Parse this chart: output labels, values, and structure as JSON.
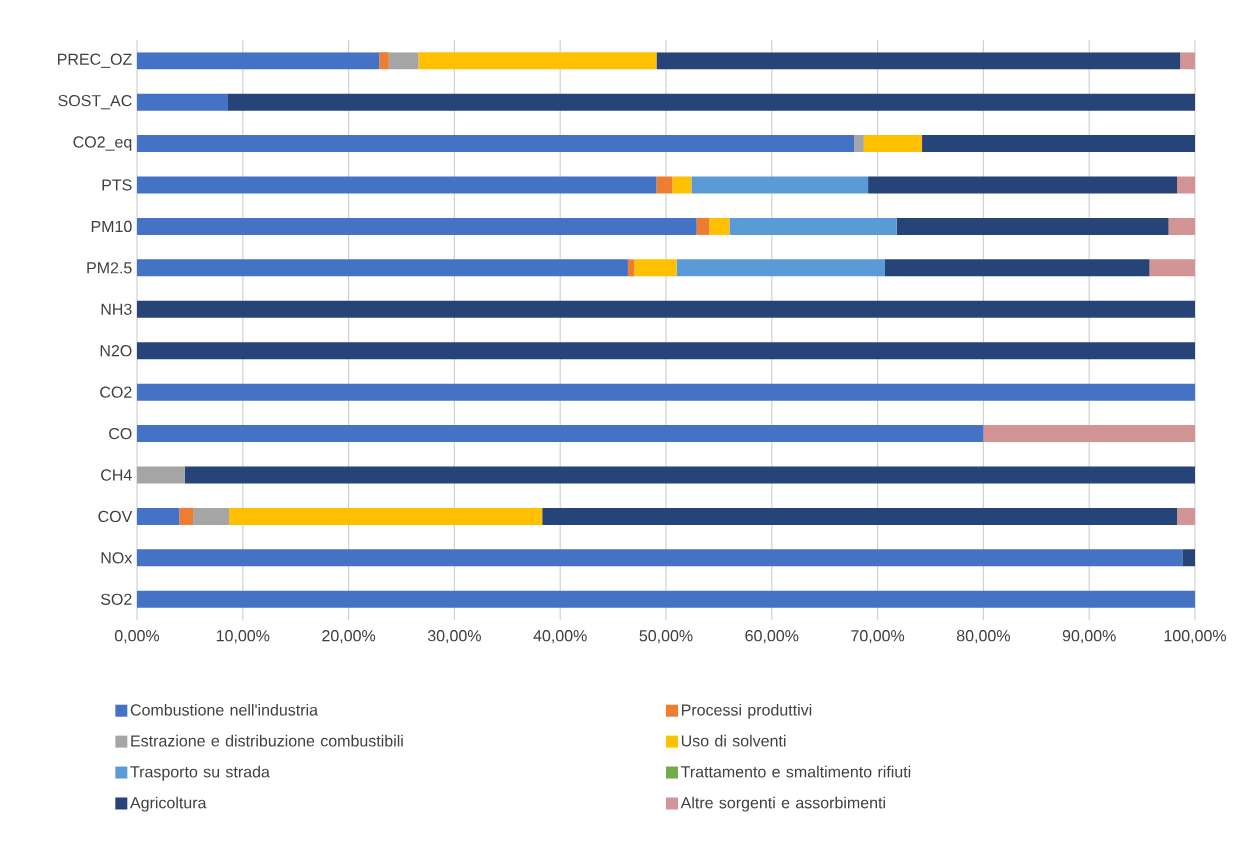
{
  "chart_data": {
    "type": "bar",
    "orientation": "horizontal",
    "stacked": true,
    "categories": [
      "PREC_OZ",
      "SOST_AC",
      "CO2_eq",
      "PTS",
      "PM10",
      "PM2.5",
      "NH3",
      "N2O",
      "CO2",
      "CO",
      "CH4",
      "COV",
      "NOx",
      "SO2"
    ],
    "series": [
      {
        "name": "Combustione nell'industria",
        "color": "#4472c4",
        "values": [
          22.9,
          8.6,
          67.8,
          49.1,
          52.9,
          46.4,
          0,
          0,
          100,
          80.0,
          0,
          4.0,
          98.8,
          100
        ]
      },
      {
        "name": "Processi produttivi",
        "color": "#ed7d31",
        "values": [
          0.9,
          0,
          0,
          1.5,
          1.2,
          0.6,
          0,
          0,
          0,
          0,
          0,
          1.3,
          0,
          0
        ]
      },
      {
        "name": "Estrazione e distribuzione combustibili",
        "color": "#a5a5a5",
        "values": [
          2.8,
          0,
          0.9,
          0,
          0,
          0,
          0,
          0,
          0,
          0,
          4.5,
          3.4,
          0,
          0
        ]
      },
      {
        "name": "Uso di solventi",
        "color": "#ffc000",
        "values": [
          22.5,
          0,
          5.5,
          1.8,
          1.9,
          4.0,
          0,
          0,
          0,
          0,
          0,
          29.6,
          0,
          0
        ]
      },
      {
        "name": "Trasporto su strada",
        "color": "#5b9bd5",
        "values": [
          0,
          0,
          0,
          16.7,
          15.8,
          19.7,
          0,
          0,
          0,
          0,
          0,
          0,
          0,
          0
        ]
      },
      {
        "name": "Trattamento e smaltimento rifiuti",
        "color": "#70ad47",
        "values": [
          0,
          0,
          0,
          0,
          0,
          0,
          0,
          0,
          0,
          0,
          0,
          0,
          0,
          0
        ]
      },
      {
        "name": "Agricoltura",
        "color": "#264478",
        "values": [
          49.5,
          91.4,
          25.8,
          29.2,
          25.7,
          25.0,
          100,
          100,
          0,
          0,
          95.5,
          60.0,
          1.2,
          0
        ]
      },
      {
        "name": "Altre sorgenti e assorbimenti",
        "color": "#d29494",
        "values": [
          1.4,
          0,
          0,
          1.7,
          2.5,
          4.3,
          0,
          0,
          0,
          20.0,
          0,
          1.7,
          0,
          0
        ]
      }
    ],
    "xlim": [
      0,
      100
    ],
    "xticks": [
      {
        "value": 0,
        "label": "0,00%"
      },
      {
        "value": 10,
        "label": "10,00%"
      },
      {
        "value": 20,
        "label": "20,00%"
      },
      {
        "value": 30,
        "label": "30,00%"
      },
      {
        "value": 40,
        "label": "40,00%"
      },
      {
        "value": 50,
        "label": "50,00%"
      },
      {
        "value": 60,
        "label": "60,00%"
      },
      {
        "value": 70,
        "label": "70,00%"
      },
      {
        "value": 80,
        "label": "80,00%"
      },
      {
        "value": 90,
        "label": "90,00%"
      },
      {
        "value": 100,
        "label": "100,00%"
      }
    ],
    "grid": "x",
    "legend": "bottom"
  }
}
